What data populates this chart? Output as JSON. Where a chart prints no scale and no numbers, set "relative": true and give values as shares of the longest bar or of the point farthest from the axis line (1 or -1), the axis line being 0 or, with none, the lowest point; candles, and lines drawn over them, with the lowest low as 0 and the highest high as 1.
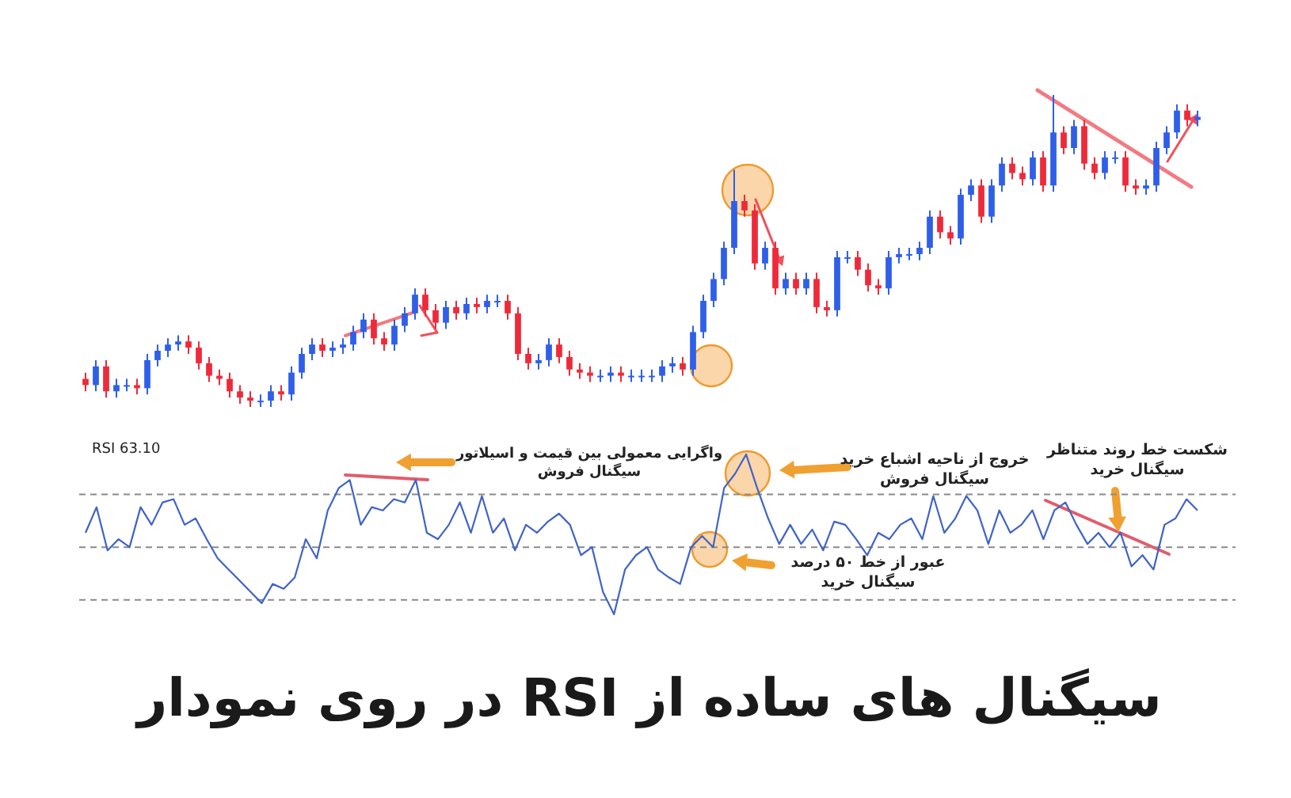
{
  "chart_data": [
    {
      "type": "candlestick",
      "relative": true,
      "categories": [
        null,
        null,
        null,
        null,
        null,
        null,
        null,
        null,
        null,
        null,
        null,
        null,
        null,
        null,
        null,
        null,
        null,
        null,
        null,
        null,
        null,
        null,
        null,
        null,
        null,
        null,
        null,
        null,
        null,
        null,
        null,
        null,
        null,
        null,
        null,
        null,
        null,
        null,
        null,
        null,
        null,
        null,
        null,
        null,
        null,
        null,
        null,
        null,
        null,
        null,
        null,
        null,
        null,
        null,
        null,
        null,
        null,
        null,
        null,
        null,
        null,
        null,
        null,
        null,
        null,
        null,
        null,
        null,
        null,
        null,
        null,
        null,
        null,
        null,
        null,
        null,
        null,
        null,
        null,
        null,
        null,
        null,
        null,
        null,
        null,
        null,
        null,
        null,
        null,
        null,
        null,
        null,
        null,
        null,
        null,
        null,
        null,
        null,
        null,
        null,
        null,
        null,
        null,
        null,
        null,
        null,
        null,
        null,
        null
      ],
      "ohlc": [
        [
          0.09,
          0.11,
          0.05,
          0.07
        ],
        [
          0.07,
          0.15,
          0.05,
          0.13
        ],
        [
          0.13,
          0.15,
          0.03,
          0.05
        ],
        [
          0.05,
          0.09,
          0.03,
          0.07
        ],
        [
          0.07,
          0.09,
          0.05,
          0.07
        ],
        [
          0.07,
          0.09,
          0.04,
          0.06
        ],
        [
          0.06,
          0.17,
          0.04,
          0.15
        ],
        [
          0.15,
          0.2,
          0.13,
          0.18
        ],
        [
          0.18,
          0.22,
          0.16,
          0.2
        ],
        [
          0.2,
          0.23,
          0.18,
          0.21
        ],
        [
          0.21,
          0.23,
          0.17,
          0.19
        ],
        [
          0.19,
          0.21,
          0.12,
          0.14
        ],
        [
          0.14,
          0.16,
          0.08,
          0.1
        ],
        [
          0.1,
          0.12,
          0.07,
          0.09
        ],
        [
          0.09,
          0.11,
          0.03,
          0.05
        ],
        [
          0.05,
          0.07,
          0.01,
          0.03
        ],
        [
          0.03,
          0.05,
          0.0,
          0.02
        ],
        [
          0.02,
          0.04,
          0.0,
          0.02
        ],
        [
          0.02,
          0.07,
          0.0,
          0.05
        ],
        [
          0.05,
          0.07,
          0.02,
          0.04
        ],
        [
          0.04,
          0.13,
          0.02,
          0.11
        ],
        [
          0.11,
          0.19,
          0.09,
          0.17
        ],
        [
          0.17,
          0.22,
          0.15,
          0.2
        ],
        [
          0.2,
          0.22,
          0.16,
          0.18
        ],
        [
          0.18,
          0.21,
          0.16,
          0.19
        ],
        [
          0.19,
          0.22,
          0.17,
          0.2
        ],
        [
          0.2,
          0.26,
          0.18,
          0.24
        ],
        [
          0.24,
          0.3,
          0.22,
          0.28
        ],
        [
          0.28,
          0.3,
          0.2,
          0.22
        ],
        [
          0.22,
          0.24,
          0.18,
          0.2
        ],
        [
          0.2,
          0.28,
          0.18,
          0.26
        ],
        [
          0.26,
          0.32,
          0.24,
          0.3
        ],
        [
          0.3,
          0.38,
          0.28,
          0.36
        ],
        [
          0.36,
          0.38,
          0.29,
          0.31
        ],
        [
          0.31,
          0.33,
          0.25,
          0.27
        ],
        [
          0.27,
          0.34,
          0.25,
          0.32
        ],
        [
          0.32,
          0.34,
          0.28,
          0.3
        ],
        [
          0.3,
          0.35,
          0.28,
          0.33
        ],
        [
          0.33,
          0.35,
          0.3,
          0.32
        ],
        [
          0.32,
          0.36,
          0.3,
          0.34
        ],
        [
          0.34,
          0.36,
          0.32,
          0.34
        ],
        [
          0.34,
          0.36,
          0.28,
          0.3
        ],
        [
          0.3,
          0.32,
          0.15,
          0.17
        ],
        [
          0.17,
          0.19,
          0.12,
          0.14
        ],
        [
          0.14,
          0.17,
          0.12,
          0.15
        ],
        [
          0.15,
          0.22,
          0.13,
          0.2
        ],
        [
          0.2,
          0.22,
          0.14,
          0.16
        ],
        [
          0.16,
          0.18,
          0.1,
          0.12
        ],
        [
          0.12,
          0.14,
          0.09,
          0.11
        ],
        [
          0.11,
          0.13,
          0.08,
          0.1
        ],
        [
          0.1,
          0.12,
          0.08,
          0.1
        ],
        [
          0.1,
          0.13,
          0.08,
          0.11
        ],
        [
          0.11,
          0.13,
          0.08,
          0.1
        ],
        [
          0.1,
          0.12,
          0.08,
          0.1
        ],
        [
          0.1,
          0.12,
          0.08,
          0.1
        ],
        [
          0.1,
          0.12,
          0.08,
          0.1
        ],
        [
          0.1,
          0.15,
          0.08,
          0.13
        ],
        [
          0.13,
          0.16,
          0.11,
          0.14
        ],
        [
          0.14,
          0.16,
          0.1,
          0.12
        ],
        [
          0.12,
          0.26,
          0.1,
          0.24
        ],
        [
          0.24,
          0.36,
          0.22,
          0.34
        ],
        [
          0.34,
          0.43,
          0.32,
          0.41
        ],
        [
          0.41,
          0.53,
          0.39,
          0.51
        ],
        [
          0.51,
          0.76,
          0.49,
          0.66
        ],
        [
          0.66,
          0.68,
          0.61,
          0.63
        ],
        [
          0.63,
          0.65,
          0.44,
          0.46
        ],
        [
          0.46,
          0.53,
          0.44,
          0.51
        ],
        [
          0.51,
          0.53,
          0.36,
          0.38
        ],
        [
          0.38,
          0.43,
          0.36,
          0.41
        ],
        [
          0.41,
          0.43,
          0.36,
          0.38
        ],
        [
          0.38,
          0.43,
          0.36,
          0.41
        ],
        [
          0.41,
          0.43,
          0.3,
          0.32
        ],
        [
          0.32,
          0.34,
          0.29,
          0.31
        ],
        [
          0.31,
          0.5,
          0.29,
          0.48
        ],
        [
          0.48,
          0.5,
          0.46,
          0.48
        ],
        [
          0.48,
          0.5,
          0.42,
          0.44
        ],
        [
          0.44,
          0.46,
          0.37,
          0.39
        ],
        [
          0.39,
          0.41,
          0.36,
          0.38
        ],
        [
          0.38,
          0.5,
          0.36,
          0.48
        ],
        [
          0.48,
          0.51,
          0.46,
          0.49
        ],
        [
          0.49,
          0.51,
          0.47,
          0.49
        ],
        [
          0.49,
          0.53,
          0.47,
          0.51
        ],
        [
          0.51,
          0.63,
          0.49,
          0.61
        ],
        [
          0.61,
          0.63,
          0.54,
          0.56
        ],
        [
          0.56,
          0.58,
          0.52,
          0.54
        ],
        [
          0.54,
          0.7,
          0.52,
          0.68
        ],
        [
          0.68,
          0.73,
          0.66,
          0.71
        ],
        [
          0.71,
          0.73,
          0.59,
          0.61
        ],
        [
          0.61,
          0.73,
          0.59,
          0.71
        ],
        [
          0.71,
          0.8,
          0.69,
          0.78
        ],
        [
          0.78,
          0.8,
          0.73,
          0.75
        ],
        [
          0.75,
          0.77,
          0.71,
          0.73
        ],
        [
          0.73,
          0.82,
          0.71,
          0.8
        ],
        [
          0.8,
          0.82,
          0.69,
          0.71
        ],
        [
          0.71,
          1.0,
          0.69,
          0.88
        ],
        [
          0.88,
          0.9,
          0.81,
          0.83
        ],
        [
          0.83,
          0.92,
          0.81,
          0.9
        ],
        [
          0.9,
          0.92,
          0.76,
          0.78
        ],
        [
          0.78,
          0.8,
          0.73,
          0.75
        ],
        [
          0.75,
          0.82,
          0.73,
          0.8
        ],
        [
          0.8,
          0.82,
          0.78,
          0.8
        ],
        [
          0.8,
          0.82,
          0.69,
          0.71
        ],
        [
          0.71,
          0.73,
          0.68,
          0.7
        ],
        [
          0.7,
          0.73,
          0.68,
          0.71
        ],
        [
          0.71,
          0.85,
          0.69,
          0.83
        ],
        [
          0.83,
          0.9,
          0.81,
          0.88
        ],
        [
          0.88,
          0.97,
          0.86,
          0.95
        ],
        [
          0.95,
          0.97,
          0.9,
          0.92
        ],
        [
          0.92,
          0.95,
          0.9,
          0.93
        ]
      ]
    },
    {
      "type": "line",
      "relative": true,
      "title": "سیگنال های ساده از RSI در روی نمودار",
      "categories": [
        null,
        null,
        null,
        null,
        null,
        null,
        null,
        null,
        null,
        null,
        null,
        null,
        null,
        null,
        null,
        null,
        null,
        null,
        null,
        null,
        null,
        null,
        null,
        null,
        null,
        null,
        null,
        null,
        null,
        null,
        null,
        null,
        null,
        null,
        null,
        null,
        null,
        null,
        null,
        null,
        null,
        null,
        null,
        null,
        null,
        null,
        null,
        null,
        null,
        null,
        null,
        null,
        null,
        null,
        null,
        null,
        null,
        null,
        null,
        null,
        null,
        null,
        null,
        null,
        null,
        null,
        null,
        null,
        null,
        null,
        null,
        null,
        null,
        null,
        null,
        null,
        null,
        null,
        null,
        null,
        null,
        null,
        null,
        null,
        null,
        null,
        null,
        null,
        null,
        null,
        null,
        null,
        null,
        null,
        null,
        null,
        null,
        null,
        null,
        null,
        null,
        null
      ],
      "series": [
        {
          "color": "#3f63c8",
          "values": [
            0.51,
            0.67,
            0.4,
            0.47,
            0.42,
            0.67,
            0.56,
            0.7,
            0.72,
            0.56,
            0.6,
            0.47,
            0.35,
            0.28,
            0.21,
            0.14,
            0.07,
            0.19,
            0.16,
            0.23,
            0.47,
            0.35,
            0.65,
            0.79,
            0.84,
            0.56,
            0.67,
            0.65,
            0.72,
            0.7,
            0.84,
            0.51,
            0.47,
            0.56,
            0.7,
            0.51,
            0.74,
            0.51,
            0.6,
            0.4,
            0.56,
            0.51,
            0.58,
            0.63,
            0.56,
            0.37,
            0.42,
            0.14,
            0.0,
            0.28,
            0.37,
            0.42,
            0.28,
            0.23,
            0.19,
            0.42,
            0.49,
            0.42,
            0.79,
            0.88,
            1.0,
            0.79,
            0.6,
            0.44,
            0.56,
            0.44,
            0.53,
            0.4,
            0.58,
            0.56,
            0.47,
            0.37,
            0.51,
            0.47,
            0.56,
            0.6,
            0.47,
            0.74,
            0.51,
            0.6,
            0.74,
            0.65,
            0.44,
            0.65,
            0.51,
            0.56,
            0.65,
            0.47,
            0.65,
            0.7,
            0.56,
            0.44,
            0.51,
            0.42,
            0.51,
            0.3,
            0.37,
            0.28,
            0.56,
            0.6,
            0.72,
            0.65
          ]
        }
      ],
      "ref_lines": [
        {
          "axis": "y",
          "value": 0.75,
          "line_style": "dashed",
          "color": "#8a8a8a"
        },
        {
          "axis": "y",
          "value": 0.42,
          "line_style": "dashed",
          "color": "#8a8a8a"
        },
        {
          "axis": "y",
          "value": 0.09,
          "line_style": "dashed",
          "color": "#8a8a8a"
        }
      ],
      "annotations": [
        "RSI 63.10",
        "واگرایی معمولی بین قیمت و اسیلاتور\nسیگنال فروش",
        "خروج از ناحیه اشباع خرید\nسیگنال فروش",
        "شکست خط روند متناظر\nسیگنال خرید",
        "عبور از خط ۵۰ درصد\nسیگنال خرید"
      ]
    }
  ]
}
